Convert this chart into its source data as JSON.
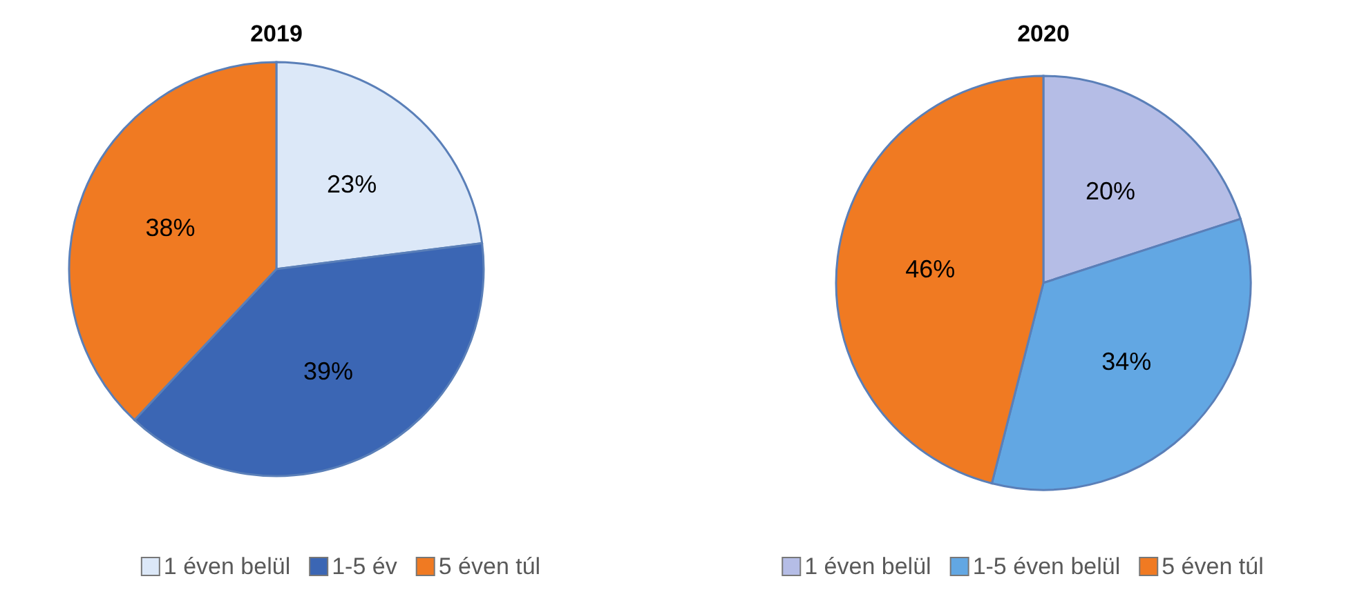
{
  "chart_data": [
    {
      "type": "pie",
      "title": "2019",
      "categories": [
        "1 éven belül",
        "1-5 év",
        "5 éven túl"
      ],
      "values": [
        23,
        39,
        38
      ],
      "value_labels": [
        "23%",
        "39%",
        "38%"
      ],
      "colors": [
        "#dce8f8",
        "#3b66b4",
        "#f07a22"
      ],
      "legend": "bottom"
    },
    {
      "type": "pie",
      "title": "2020",
      "categories": [
        "1 éven belül",
        "1-5 éven belül",
        "5 éven túl"
      ],
      "values": [
        20,
        34,
        46
      ],
      "value_labels": [
        "20%",
        "34%",
        "46%"
      ],
      "colors": [
        "#b5bde6",
        "#62a7e3",
        "#f07a22"
      ],
      "legend": "bottom"
    }
  ]
}
